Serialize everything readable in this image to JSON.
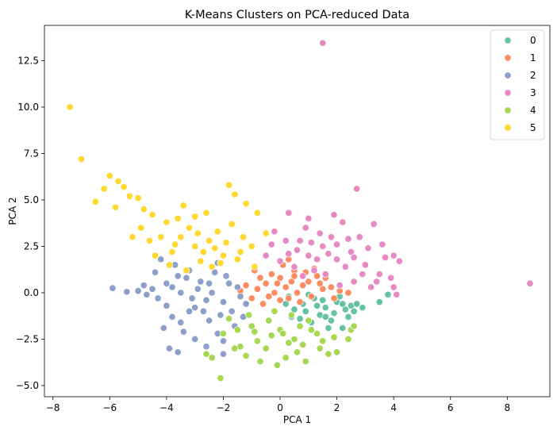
{
  "chart_data": {
    "type": "scatter",
    "title": "K-Means Clusters on PCA-reduced Data",
    "xlabel": "PCA 1",
    "ylabel": "PCA 2",
    "xlim": [
      -8.3,
      9.5
    ],
    "ylim": [
      -5.6,
      14.4
    ],
    "xticks": [
      -8,
      -6,
      -4,
      -2,
      0,
      2,
      4,
      6,
      8
    ],
    "yticks": [
      -5.0,
      -2.5,
      0.0,
      2.5,
      5.0,
      7.5,
      10.0,
      12.5
    ],
    "ytick_labels": [
      "−5.0",
      "−2.5",
      "0.0",
      "2.5",
      "5.0",
      "7.5",
      "10.0",
      "12.5"
    ],
    "xtick_labels": [
      "−8",
      "−6",
      "−4",
      "−2",
      "0",
      "2",
      "4",
      "6",
      "8"
    ],
    "grid": false,
    "legend": "top-right",
    "series": [
      {
        "name": "0",
        "color": "#66c2a5",
        "points": [
          [
            0.8,
            -0.6
          ],
          [
            1.2,
            -0.3
          ],
          [
            1.6,
            -0.8
          ],
          [
            2.0,
            -0.5
          ],
          [
            2.3,
            -0.9
          ],
          [
            1.4,
            -1.2
          ],
          [
            0.9,
            -1.0
          ],
          [
            1.8,
            -1.5
          ],
          [
            2.5,
            -0.7
          ],
          [
            2.7,
            -0.6
          ],
          [
            3.5,
            -0.5
          ],
          [
            3.8,
            -0.1
          ],
          [
            2.2,
            -1.9
          ],
          [
            0.3,
            -0.2
          ],
          [
            0.5,
            -0.9
          ],
          [
            1.1,
            -1.6
          ],
          [
            1.9,
            -1.1
          ],
          [
            2.4,
            -1.3
          ],
          [
            1.5,
            -0.4
          ],
          [
            0.7,
            -1.4
          ],
          [
            1.3,
            -0.7
          ],
          [
            2.1,
            -0.2
          ],
          [
            2.6,
            -1.0
          ],
          [
            0.4,
            -1.3
          ],
          [
            1.7,
            -1.9
          ],
          [
            1.0,
            -0.1
          ],
          [
            0.2,
            -0.6
          ],
          [
            2.9,
            -0.8
          ],
          [
            1.6,
            -1.3
          ],
          [
            2.2,
            -0.6
          ]
        ]
      },
      {
        "name": "1",
        "color": "#fc8d62",
        "points": [
          [
            -0.5,
            0.5
          ],
          [
            0.0,
            0.8
          ],
          [
            0.5,
            1.2
          ],
          [
            1.0,
            0.6
          ],
          [
            1.5,
            0.2
          ],
          [
            -0.2,
            0.0
          ],
          [
            0.3,
            -0.3
          ],
          [
            0.8,
            0.4
          ],
          [
            1.3,
            0.9
          ],
          [
            -0.8,
            0.2
          ],
          [
            -1.0,
            -0.3
          ],
          [
            -0.6,
            -0.6
          ],
          [
            0.1,
            1.5
          ],
          [
            0.6,
            0.0
          ],
          [
            1.1,
            -0.2
          ],
          [
            1.8,
            0.3
          ],
          [
            2.1,
            0.1
          ],
          [
            -0.3,
            1.0
          ],
          [
            0.4,
            0.6
          ],
          [
            0.9,
            1.1
          ],
          [
            -1.2,
            0.4
          ],
          [
            -0.9,
            1.2
          ],
          [
            0.2,
            0.3
          ],
          [
            0.7,
            -0.5
          ],
          [
            1.4,
            0.5
          ],
          [
            1.9,
            -0.3
          ],
          [
            -0.4,
            -0.2
          ],
          [
            0.0,
            -0.4
          ],
          [
            0.5,
            0.9
          ],
          [
            1.2,
            1.3
          ],
          [
            -0.7,
            0.8
          ],
          [
            1.6,
            0.8
          ],
          [
            2.4,
            0.0
          ],
          [
            -1.4,
            0.1
          ],
          [
            0.3,
            1.8
          ],
          [
            -0.1,
            0.5
          ]
        ]
      },
      {
        "name": "2",
        "color": "#8da0cb",
        "points": [
          [
            -3.5,
            0.0
          ],
          [
            -3.0,
            -0.8
          ],
          [
            -2.5,
            -1.5
          ],
          [
            -2.0,
            -0.5
          ],
          [
            -1.5,
            0.3
          ],
          [
            -4.0,
            0.5
          ],
          [
            -3.8,
            -1.3
          ],
          [
            -3.2,
            1.2
          ],
          [
            -2.8,
            0.6
          ],
          [
            -2.2,
            -2.2
          ],
          [
            -2.6,
            -2.9
          ],
          [
            -3.4,
            -2.1
          ],
          [
            -4.5,
            0.2
          ],
          [
            -5.0,
            0.1
          ],
          [
            -5.9,
            0.25
          ],
          [
            -5.4,
            0.05
          ],
          [
            -3.9,
            -3.0
          ],
          [
            -3.6,
            -3.2
          ],
          [
            -2.0,
            -3.3
          ],
          [
            -1.7,
            -1.0
          ],
          [
            -1.2,
            -0.6
          ],
          [
            -4.2,
            1.8
          ],
          [
            -3.7,
            1.5
          ],
          [
            -2.4,
            0.0
          ],
          [
            -1.9,
            0.9
          ],
          [
            -3.1,
            -0.3
          ],
          [
            -2.7,
            -1.0
          ],
          [
            -4.1,
            -1.9
          ],
          [
            -3.3,
            0.8
          ],
          [
            -2.3,
            1.1
          ],
          [
            -1.6,
            -1.8
          ],
          [
            -4.4,
            1.1
          ],
          [
            -3.0,
            -2.5
          ],
          [
            -2.1,
            -1.2
          ],
          [
            -4.0,
            -0.7
          ],
          [
            -1.4,
            -0.2
          ],
          [
            -3.5,
            -1.6
          ],
          [
            -2.9,
            0.2
          ],
          [
            -4.7,
            -0.1
          ],
          [
            -2.5,
            0.5
          ],
          [
            -3.2,
            -1.0
          ],
          [
            -1.8,
            0.5
          ],
          [
            -4.3,
            -0.3
          ],
          [
            -3.8,
            0.3
          ],
          [
            -2.6,
            -0.4
          ],
          [
            -2.0,
            -2.6
          ],
          [
            -3.6,
            0.9
          ],
          [
            -1.3,
            -1.3
          ],
          [
            -4.8,
            0.4
          ],
          [
            -2.2,
            1.6
          ]
        ]
      },
      {
        "name": "3",
        "color": "#e78ac3",
        "points": [
          [
            1.5,
            13.45
          ],
          [
            8.8,
            0.5
          ],
          [
            1.0,
            2.0
          ],
          [
            1.5,
            2.5
          ],
          [
            2.0,
            1.8
          ],
          [
            2.5,
            2.2
          ],
          [
            3.0,
            1.5
          ],
          [
            3.5,
            1.0
          ],
          [
            4.0,
            2.0
          ],
          [
            2.8,
            3.0
          ],
          [
            2.2,
            3.8
          ],
          [
            1.8,
            3.0
          ],
          [
            1.2,
            1.2
          ],
          [
            0.6,
            2.3
          ],
          [
            0.2,
            2.8
          ],
          [
            -0.2,
            3.3
          ],
          [
            -0.5,
            2.0
          ],
          [
            0.0,
            1.7
          ],
          [
            0.9,
            3.5
          ],
          [
            1.9,
            4.2
          ],
          [
            2.7,
            5.6
          ],
          [
            4.2,
            1.7
          ],
          [
            3.9,
            0.8
          ],
          [
            3.2,
            0.3
          ],
          [
            2.6,
            0.6
          ],
          [
            2.1,
            0.4
          ],
          [
            1.6,
            1.0
          ],
          [
            3.6,
            2.6
          ],
          [
            3.3,
            3.7
          ],
          [
            2.4,
            2.9
          ],
          [
            1.3,
            1.8
          ],
          [
            0.8,
            0.9
          ],
          [
            0.3,
            2.1
          ],
          [
            -0.3,
            2.6
          ],
          [
            1.0,
            4.0
          ],
          [
            0.3,
            4.3
          ],
          [
            2.9,
            1.0
          ],
          [
            3.7,
            1.9
          ],
          [
            4.0,
            0.3
          ],
          [
            4.1,
            -0.1
          ],
          [
            3.4,
            0.6
          ],
          [
            2.3,
            1.4
          ],
          [
            1.7,
            2.1
          ],
          [
            1.1,
            2.7
          ],
          [
            0.5,
            1.4
          ],
          [
            2.0,
            2.6
          ],
          [
            2.6,
            1.9
          ],
          [
            3.1,
            2.4
          ],
          [
            1.4,
            3.2
          ],
          [
            0.7,
            2.8
          ]
        ]
      },
      {
        "name": "4",
        "color": "#a6d854",
        "points": [
          [
            0.0,
            -2.0
          ],
          [
            0.5,
            -2.5
          ],
          [
            -0.5,
            -3.0
          ],
          [
            1.0,
            -1.5
          ],
          [
            -1.0,
            -1.8
          ],
          [
            0.2,
            -3.5
          ],
          [
            -0.3,
            -2.3
          ],
          [
            0.8,
            -2.8
          ],
          [
            1.3,
            -2.2
          ],
          [
            -0.8,
            -2.6
          ],
          [
            -1.5,
            -2.0
          ],
          [
            -2.0,
            -2.2
          ],
          [
            -2.1,
            -4.6
          ],
          [
            -2.4,
            -3.5
          ],
          [
            -2.6,
            -3.3
          ],
          [
            -0.1,
            -3.9
          ],
          [
            0.9,
            -3.7
          ],
          [
            1.7,
            -3.3
          ],
          [
            2.0,
            -3.2
          ],
          [
            2.4,
            -2.5
          ],
          [
            2.5,
            -2.0
          ],
          [
            2.6,
            -1.8
          ],
          [
            -1.2,
            -3.4
          ],
          [
            -0.7,
            -3.7
          ],
          [
            0.4,
            -1.2
          ],
          [
            1.5,
            -2.6
          ],
          [
            -1.8,
            -1.4
          ],
          [
            -0.4,
            -1.5
          ],
          [
            0.6,
            -3.2
          ],
          [
            1.1,
            -2.0
          ],
          [
            -0.9,
            -2.1
          ],
          [
            0.3,
            -2.7
          ],
          [
            -1.4,
            -2.9
          ],
          [
            1.9,
            -2.4
          ],
          [
            -0.2,
            -1.0
          ],
          [
            0.7,
            -1.8
          ],
          [
            -1.1,
            -1.2
          ],
          [
            1.4,
            -3.0
          ],
          [
            -1.6,
            -3.0
          ],
          [
            0.1,
            -2.2
          ]
        ]
      },
      {
        "name": "5",
        "color": "#ffd92f",
        "points": [
          [
            -7.4,
            10.0
          ],
          [
            -7.0,
            7.2
          ],
          [
            -6.0,
            6.3
          ],
          [
            -5.7,
            6.0
          ],
          [
            -5.5,
            5.7
          ],
          [
            -6.2,
            5.6
          ],
          [
            -5.3,
            5.2
          ],
          [
            -6.5,
            4.9
          ],
          [
            -5.0,
            5.1
          ],
          [
            -4.8,
            4.5
          ],
          [
            -4.5,
            4.2
          ],
          [
            -4.0,
            3.8
          ],
          [
            -3.5,
            3.0
          ],
          [
            -3.0,
            2.5
          ],
          [
            -2.5,
            2.8
          ],
          [
            -2.0,
            2.0
          ],
          [
            -1.5,
            1.8
          ],
          [
            -3.8,
            2.2
          ],
          [
            -3.2,
            3.5
          ],
          [
            -2.8,
            1.7
          ],
          [
            -2.2,
            3.3
          ],
          [
            -1.8,
            5.8
          ],
          [
            -1.6,
            5.3
          ],
          [
            -1.2,
            4.8
          ],
          [
            -0.8,
            4.3
          ],
          [
            -0.5,
            3.2
          ],
          [
            -1.0,
            2.5
          ],
          [
            -4.2,
            3.0
          ],
          [
            -3.6,
            4.0
          ],
          [
            -3.4,
            4.7
          ],
          [
            -2.6,
            4.3
          ],
          [
            -5.2,
            3.0
          ],
          [
            -4.6,
            2.8
          ],
          [
            -5.8,
            4.6
          ],
          [
            -3.0,
            4.1
          ],
          [
            -2.4,
            1.4
          ],
          [
            -1.9,
            2.7
          ],
          [
            -1.3,
            3.0
          ],
          [
            -4.4,
            2.0
          ],
          [
            -3.3,
            1.2
          ],
          [
            -2.7,
            2.2
          ],
          [
            -2.1,
            1.6
          ],
          [
            -3.9,
            1.5
          ],
          [
            -1.7,
            3.7
          ],
          [
            -4.9,
            3.5
          ],
          [
            -2.9,
            3.2
          ],
          [
            -3.7,
            2.6
          ],
          [
            -2.3,
            2.4
          ],
          [
            -1.4,
            2.2
          ],
          [
            -0.9,
            1.4
          ]
        ]
      }
    ]
  }
}
